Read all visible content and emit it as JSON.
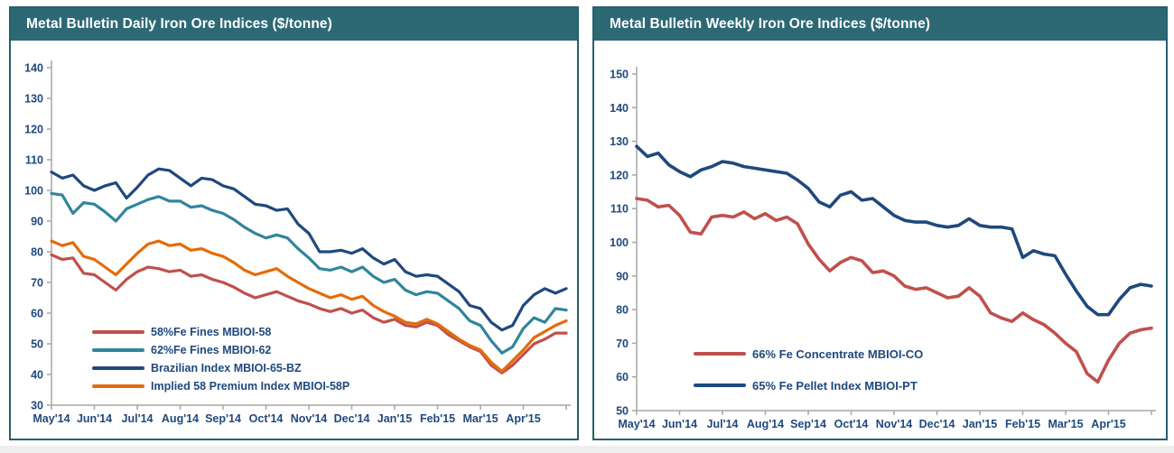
{
  "panel_style": {
    "title_background": "#2d6974",
    "title_text_color": "#ffffff",
    "border_color": "#26606d",
    "axis_color": "#a6a6a6",
    "label_color": "#1f497d"
  },
  "chart_data": [
    {
      "type": "line",
      "title": "Metal Bulletin Daily Iron Ore Indices ($/tonne)",
      "xlabel": "",
      "ylabel": "",
      "ylim": [
        30,
        140
      ],
      "y_ticks": [
        30,
        40,
        50,
        60,
        70,
        80,
        90,
        100,
        110,
        120,
        130,
        140
      ],
      "x_labels": [
        "May'14",
        "Jun'14",
        "Jul'14",
        "Aug'14",
        "Sep'14",
        "Oct'14",
        "Nov'14",
        "Dec'14",
        "Jan'15",
        "Feb'15",
        "Mar'15",
        "Apr'15"
      ],
      "grid": false,
      "legend_position": "inside-lower-left",
      "series": [
        {
          "name": "58%Fe Fines MBIOI-58",
          "color": "#c0504d",
          "values": [
            79,
            77.5,
            78,
            73,
            72.5,
            70,
            67.5,
            71,
            73.5,
            75,
            74.5,
            73.5,
            74,
            72,
            72.5,
            71,
            70,
            68.5,
            66.5,
            65,
            66,
            67,
            65.5,
            64,
            63,
            61.5,
            60.5,
            61.5,
            60,
            61,
            58.5,
            57,
            58,
            56,
            55.5,
            57,
            56,
            53,
            51,
            49,
            47.5,
            43,
            40.5,
            43,
            46.5,
            50,
            51.5,
            53.5,
            53.5
          ]
        },
        {
          "name": "62%Fe Fines MBIOI-62",
          "color": "#31859c",
          "values": [
            99,
            98.5,
            92.5,
            96,
            95.5,
            93,
            90,
            94,
            95.5,
            97,
            98,
            96.5,
            96.5,
            94.5,
            95,
            93.5,
            92.5,
            90.5,
            88,
            86,
            84.5,
            85.5,
            84.5,
            81,
            78,
            74.5,
            74,
            75,
            73.5,
            75,
            72,
            70,
            71,
            67.5,
            66,
            67,
            66.5,
            64,
            61.5,
            57.5,
            56,
            51,
            47,
            49,
            55,
            58.5,
            57,
            61.5,
            61
          ]
        },
        {
          "name": "Brazilian Index MBIOI-65-BZ",
          "color": "#1f497d",
          "values": [
            106,
            104,
            105,
            101.5,
            100,
            101.5,
            102.5,
            97.5,
            101,
            105,
            107,
            106.5,
            104,
            101.5,
            104,
            103.5,
            101.5,
            100.5,
            98,
            95.5,
            95,
            93.5,
            94,
            89,
            86,
            80,
            80,
            80.5,
            79.5,
            81,
            78,
            76,
            77.5,
            73.5,
            72,
            72.5,
            72,
            69.5,
            67,
            62.5,
            61.5,
            57,
            54.5,
            56,
            62.5,
            66,
            68,
            66.5,
            68
          ]
        },
        {
          "name": "Implied 58 Premium Index MBIOI-58P",
          "color": "#e36c0a",
          "values": [
            83.5,
            82,
            83,
            78.5,
            77.5,
            75,
            72.5,
            76,
            79.5,
            82.5,
            83.5,
            82,
            82.5,
            80.5,
            81,
            79.5,
            78.5,
            76.5,
            74,
            72.5,
            73.5,
            74.5,
            72,
            70,
            68,
            66.5,
            65,
            66,
            64.5,
            65.5,
            62.5,
            60.5,
            59,
            57,
            56.5,
            58,
            56.5,
            54,
            51.5,
            49.5,
            48,
            44,
            41,
            44.5,
            48,
            52,
            54,
            56,
            57.5
          ]
        }
      ]
    },
    {
      "type": "line",
      "title": "Metal Bulletin Weekly Iron Ore Indices ($/tonne)",
      "xlabel": "",
      "ylabel": "",
      "ylim": [
        50,
        150
      ],
      "y_ticks": [
        50,
        60,
        70,
        80,
        90,
        100,
        110,
        120,
        130,
        140,
        150
      ],
      "x_labels": [
        "May'14",
        "Jun'14",
        "Jul'14",
        "Aug'14",
        "Sep'14",
        "Oct'14",
        "Nov'14",
        "Dec'14",
        "Jan'15",
        "Feb'15",
        "Mar'15",
        "Apr'15"
      ],
      "grid": false,
      "legend_position": "inside-lower-left",
      "series": [
        {
          "name": "66% Fe Concentrate MBIOI-CO",
          "color": "#c0504d",
          "values": [
            113,
            112.5,
            110.5,
            111,
            108,
            103,
            102.5,
            107.5,
            108,
            107.5,
            109,
            107,
            108.5,
            106.5,
            107.5,
            105.5,
            99.5,
            95,
            91.5,
            94,
            95.5,
            94.5,
            91,
            91.5,
            90,
            87,
            86,
            86.5,
            85,
            83.5,
            84,
            86.5,
            84,
            79,
            77.5,
            76.5,
            79,
            77,
            75.5,
            73,
            70,
            67.5,
            61,
            58.5,
            65,
            70,
            73,
            74,
            74.5
          ]
        },
        {
          "name": "65% Fe Pellet Index MBIOI-PT",
          "color": "#1f497d",
          "values": [
            128.5,
            125.5,
            126.5,
            123,
            121,
            119.5,
            121.5,
            122.5,
            124,
            123.5,
            122.5,
            122,
            121.5,
            121,
            120.5,
            118.5,
            116,
            112,
            110.5,
            114,
            115,
            112.5,
            113,
            110.5,
            108,
            106.5,
            106,
            106,
            105,
            104.5,
            105,
            107,
            105,
            104.5,
            104.5,
            104,
            95.5,
            97.5,
            96.5,
            96,
            90.5,
            85.5,
            81,
            78.5,
            78.5,
            83,
            86.5,
            87.5,
            87
          ]
        }
      ]
    }
  ]
}
